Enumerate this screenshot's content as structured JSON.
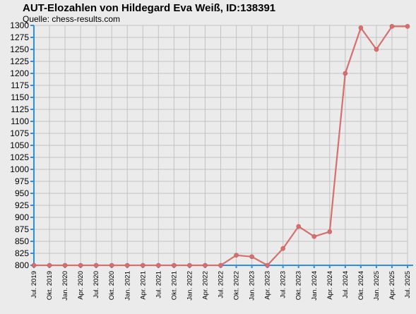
{
  "title": "AUT-Elozahlen von Hildegard Eva Weiß, ID:138391",
  "subtitle": "Quelle: chess-results.com",
  "colors": {
    "background": "#ebebeb",
    "grid": "#c3c3c3",
    "axis": "#2f8ee8",
    "line": "#d76f6f",
    "marker": "#d76f6f"
  },
  "chart_data": {
    "type": "line",
    "title": "AUT-Elozahlen von Hildegard Eva Weiß, ID:138391",
    "subtitle": "Quelle: chess-results.com",
    "xlabel": "",
    "ylabel": "",
    "ylim": [
      800,
      1300
    ],
    "ytick_step": 25,
    "grid": true,
    "legend": "none",
    "categories": [
      "Jul. 2019",
      "Okt. 2019",
      "Jan. 2020",
      "Apr. 2020",
      "Jul. 2020",
      "Okt. 2020",
      "Jan. 2021",
      "Apr. 2021",
      "Jul. 2021",
      "Okt. 2021",
      "Jan. 2022",
      "Apr. 2022",
      "Jul. 2022",
      "Okt. 2022",
      "Jan. 2023",
      "Apr. 2023",
      "Jul. 2023",
      "Okt. 2023",
      "Jan. 2024",
      "Apr. 2024",
      "Jul. 2024",
      "Okt. 2024",
      "Jan. 2025",
      "Apr. 2025",
      "Jul. 2025"
    ],
    "series": [
      {
        "values": [
          800,
          800,
          800,
          800,
          800,
          800,
          800,
          800,
          800,
          800,
          800,
          800,
          800,
          821,
          818,
          800,
          835,
          881,
          860,
          870,
          1200,
          1295,
          1250,
          1298,
          1298
        ]
      }
    ]
  }
}
